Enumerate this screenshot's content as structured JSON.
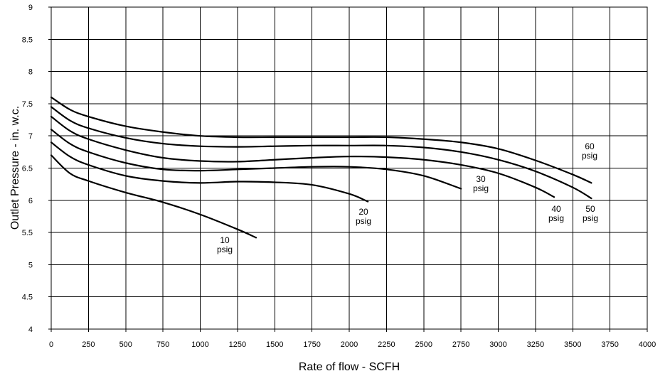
{
  "chart_data": {
    "type": "line",
    "xlabel": "Rate of flow - SCFH",
    "ylabel": "Outlet Pressure - in. w.c.",
    "xlim": [
      0,
      4000
    ],
    "ylim": [
      4,
      9
    ],
    "x_ticks": [
      "0",
      "250",
      "500",
      "750",
      "1000",
      "1250",
      "1500",
      "1750",
      "2000",
      "2250",
      "2500",
      "2750",
      "3000",
      "3250",
      "3500",
      "3750",
      "4000"
    ],
    "y_ticks": [
      "4",
      "4.5",
      "5",
      "5.5",
      "6",
      "6.5",
      "7",
      "7.5",
      "8",
      "8.5",
      "9"
    ],
    "grid": true,
    "series": [
      {
        "name": "10 psig",
        "label_lines": [
          "10",
          "psig"
        ],
        "x": [
          0,
          125,
          250,
          500,
          750,
          1000,
          1250,
          1375
        ],
        "y": [
          6.7,
          6.42,
          6.3,
          6.12,
          5.97,
          5.78,
          5.55,
          5.42
        ]
      },
      {
        "name": "20 psig",
        "label_lines": [
          "20",
          "psig"
        ],
        "x": [
          0,
          125,
          250,
          500,
          750,
          1000,
          1250,
          1500,
          1750,
          2000,
          2125
        ],
        "y": [
          6.9,
          6.68,
          6.55,
          6.38,
          6.3,
          6.27,
          6.29,
          6.28,
          6.24,
          6.1,
          5.98
        ]
      },
      {
        "name": "30 psig",
        "label_lines": [
          "30",
          "psig"
        ],
        "x": [
          0,
          125,
          250,
          500,
          750,
          1000,
          1250,
          1500,
          1750,
          2000,
          2250,
          2500,
          2750
        ],
        "y": [
          7.1,
          6.88,
          6.75,
          6.58,
          6.48,
          6.46,
          6.48,
          6.5,
          6.52,
          6.52,
          6.48,
          6.38,
          6.18
        ]
      },
      {
        "name": "40 psig",
        "label_lines": [
          "40",
          "psig"
        ],
        "x": [
          0,
          125,
          250,
          500,
          750,
          1000,
          1250,
          1500,
          1750,
          2000,
          2250,
          2500,
          2750,
          3000,
          3250,
          3375
        ],
        "y": [
          7.3,
          7.08,
          6.95,
          6.78,
          6.66,
          6.61,
          6.6,
          6.63,
          6.66,
          6.68,
          6.67,
          6.63,
          6.55,
          6.42,
          6.2,
          6.05
        ]
      },
      {
        "name": "50 psig",
        "label_lines": [
          "50",
          "psig"
        ],
        "x": [
          0,
          125,
          250,
          500,
          750,
          1000,
          1250,
          1500,
          1750,
          2000,
          2250,
          2500,
          2750,
          3000,
          3250,
          3500,
          3625
        ],
        "y": [
          7.45,
          7.24,
          7.12,
          6.97,
          6.88,
          6.84,
          6.83,
          6.84,
          6.85,
          6.85,
          6.85,
          6.82,
          6.75,
          6.63,
          6.45,
          6.2,
          6.03
        ]
      },
      {
        "name": "60 psig",
        "label_lines": [
          "60",
          "psig"
        ],
        "x": [
          0,
          125,
          250,
          500,
          750,
          1000,
          1250,
          1500,
          1750,
          2000,
          2250,
          2500,
          2750,
          3000,
          3250,
          3500,
          3625
        ],
        "y": [
          7.6,
          7.41,
          7.3,
          7.15,
          7.06,
          7.0,
          6.98,
          6.98,
          6.98,
          6.98,
          6.98,
          6.95,
          6.9,
          6.8,
          6.62,
          6.4,
          6.27
        ]
      }
    ]
  }
}
